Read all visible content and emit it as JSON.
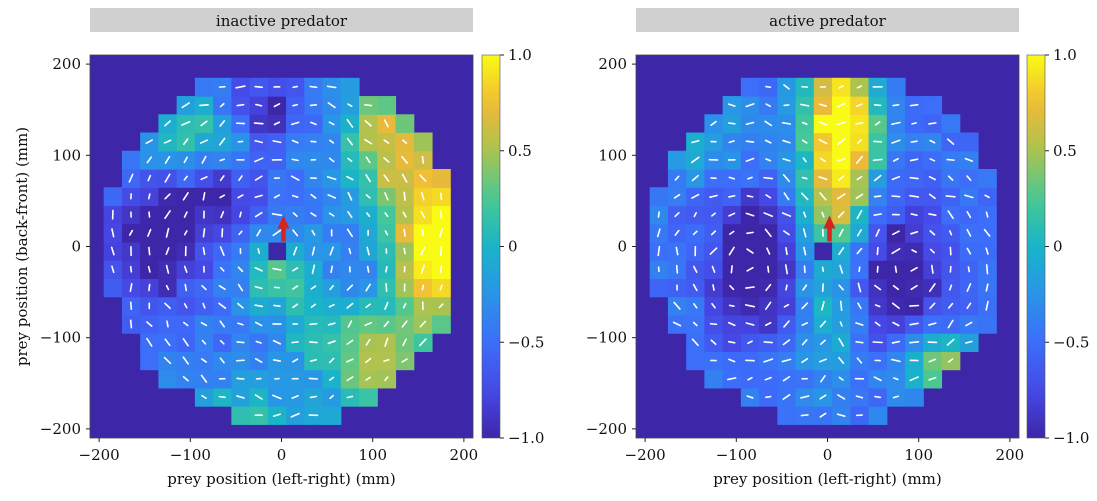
{
  "chart_data": [
    {
      "type": "heatmap",
      "title": "inactive predator",
      "xlabel": "prey position (left-right) (mm)",
      "ylabel": "prey position (back-front) (mm)",
      "xlim": [
        -210,
        210
      ],
      "ylim": [
        -210,
        210
      ],
      "xticks": [
        -200,
        -100,
        0,
        100,
        200
      ],
      "yticks": [
        -200,
        -100,
        0,
        100,
        200
      ],
      "xtick_labels": [
        "−200",
        "−100",
        "0",
        "100",
        "200"
      ],
      "ytick_labels": [
        "−200",
        "−100",
        "0",
        "100",
        "200"
      ],
      "arena_radius_mm": 195,
      "grid_cell_mm": 20,
      "colorbar": {
        "range": [
          -1.0,
          1.0
        ],
        "ticks": [
          1.0,
          0.5,
          0,
          -0.5,
          -1.0
        ],
        "tick_labels": [
          "1.0",
          "0.5",
          "0",
          "−0.5",
          "−1.0"
        ]
      },
      "regions": [
        {
          "x": 170,
          "y": 10,
          "sx": 35,
          "sy": 70,
          "value": 1.6
        },
        {
          "x": 110,
          "y": 120,
          "sx": 30,
          "sy": 50,
          "value": 1.0
        },
        {
          "x": 110,
          "y": -130,
          "sx": 35,
          "sy": 45,
          "value": 1.0
        },
        {
          "x": 0,
          "y": -30,
          "sx": 30,
          "sy": 30,
          "value": 0.7
        },
        {
          "x": -95,
          "y": 125,
          "sx": 45,
          "sy": 30,
          "value": 0.6
        },
        {
          "x": -60,
          "y": -185,
          "sx": 60,
          "sy": 25,
          "value": 0.6
        },
        {
          "x": 40,
          "y": -100,
          "sx": 30,
          "sy": 30,
          "value": 0.5
        },
        {
          "x": -20,
          "y": 150,
          "sx": 30,
          "sy": 25,
          "value": -0.6
        },
        {
          "x": -140,
          "y": 0,
          "sx": 35,
          "sy": 45,
          "value": -0.7
        },
        {
          "x": -70,
          "y": 50,
          "sx": 35,
          "sy": 35,
          "value": -0.5
        }
      ],
      "base_value": -0.45,
      "flow": "rotational",
      "predator": {
        "x": 0,
        "y": 0,
        "heading": "front"
      },
      "arrow_color": "#d8231f"
    },
    {
      "type": "heatmap",
      "title": "active predator",
      "xlabel": "prey position (left-right) (mm)",
      "ylabel": "",
      "xlim": [
        -210,
        210
      ],
      "ylim": [
        -210,
        210
      ],
      "xticks": [
        -200,
        -100,
        0,
        100,
        200
      ],
      "yticks": [
        -200,
        -100,
        0,
        100,
        200
      ],
      "xtick_labels": [
        "−200",
        "−100",
        "0",
        "100",
        "200"
      ],
      "ytick_labels": [
        "−200",
        "−100",
        "0",
        "100",
        "200"
      ],
      "arena_radius_mm": 195,
      "grid_cell_mm": 20,
      "colorbar": {
        "range": [
          -1.0,
          1.0
        ],
        "ticks": [
          1.0,
          0.5,
          0,
          -0.5,
          -1.0
        ],
        "tick_labels": [
          "1.0",
          "0.5",
          "0",
          "−0.5",
          "−1.0"
        ]
      },
      "regions": [
        {
          "x": 15,
          "y": 130,
          "sx": 28,
          "sy": 55,
          "value": 1.8
        },
        {
          "x": 10,
          "y": 40,
          "sx": 25,
          "sy": 30,
          "value": 0.6
        },
        {
          "x": 0,
          "y": -60,
          "sx": 25,
          "sy": 60,
          "value": 0.5
        },
        {
          "x": 120,
          "y": -130,
          "sx": 25,
          "sy": 25,
          "value": 1.0
        },
        {
          "x": -150,
          "y": 120,
          "sx": 40,
          "sy": 30,
          "value": 0.4
        },
        {
          "x": -80,
          "y": -20,
          "sx": 35,
          "sy": 55,
          "value": -0.8
        },
        {
          "x": 80,
          "y": -30,
          "sx": 35,
          "sy": 55,
          "value": -0.7
        }
      ],
      "base_value": -0.45,
      "flow": "swirl",
      "predator": {
        "x": 0,
        "y": 0,
        "heading": "front"
      },
      "arrow_color": "#d8231f"
    }
  ]
}
